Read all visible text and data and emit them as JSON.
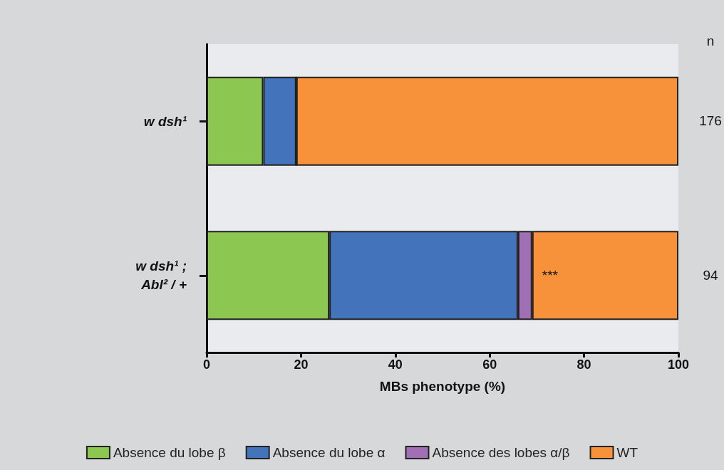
{
  "chart_data": {
    "type": "bar",
    "orientation": "horizontal",
    "stacked": true,
    "xlabel": "MBs phenotype (%)",
    "categories": [
      "w dsh¹",
      "w dsh¹ ;\nAbl² / +"
    ],
    "series": [
      {
        "name": "Absence du lobe β",
        "color": "#8bc751",
        "values": [
          12,
          26
        ]
      },
      {
        "name": "Absence du lobe α",
        "color": "#4374bb",
        "values": [
          7,
          40
        ]
      },
      {
        "name": "Absence des lobes α/β",
        "color": "#a06fb4",
        "values": [
          0,
          3
        ]
      },
      {
        "name": "WT",
        "color": "#f7923a",
        "values": [
          81,
          31
        ]
      }
    ],
    "xlim": [
      0,
      100
    ],
    "xticks": [
      0,
      20,
      40,
      60,
      80,
      100
    ],
    "grid": false,
    "legend": "bottom",
    "annotations": [
      "n",
      "176",
      "94",
      {
        "text": "***",
        "x": 69,
        "y": "w dsh¹ ;\nAbl² / +"
      }
    ]
  }
}
